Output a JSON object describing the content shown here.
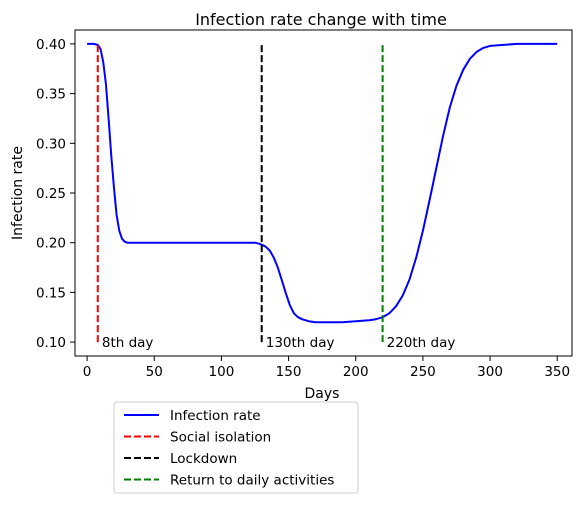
{
  "chart_data": {
    "type": "line",
    "title": "Infection rate change with time",
    "xlabel": "Days",
    "ylabel": "Infection rate",
    "xlim": [
      -9,
      361
    ],
    "ylim": [
      0.086,
      0.414
    ],
    "xticks": [
      0,
      50,
      100,
      150,
      200,
      250,
      300,
      350
    ],
    "yticks": [
      0.1,
      0.15,
      0.2,
      0.25,
      0.3,
      0.35,
      0.4
    ],
    "ytick_labels": [
      "0.10",
      "0.15",
      "0.20",
      "0.25",
      "0.30",
      "0.35",
      "0.40"
    ],
    "grid": false,
    "legend_placement": "below plot, left",
    "series": [
      {
        "name": "Infection rate",
        "kind": "line",
        "color": "#0000ff",
        "x": [
          0,
          5,
          8,
          10,
          12,
          14,
          16,
          18,
          20,
          22,
          24,
          26,
          28,
          30,
          35,
          40,
          50,
          100,
          125,
          128,
          130,
          133,
          136,
          139,
          142,
          145,
          148,
          151,
          154,
          157,
          160,
          165,
          170,
          180,
          190,
          200,
          210,
          215,
          220,
          225,
          230,
          235,
          240,
          245,
          250,
          255,
          260,
          265,
          270,
          275,
          280,
          285,
          290,
          295,
          300,
          310,
          320,
          330,
          340,
          350
        ],
        "y": [
          0.4,
          0.4,
          0.399,
          0.395,
          0.382,
          0.36,
          0.325,
          0.287,
          0.255,
          0.228,
          0.212,
          0.204,
          0.201,
          0.2,
          0.2,
          0.2,
          0.2,
          0.2,
          0.2,
          0.199,
          0.198,
          0.196,
          0.192,
          0.185,
          0.175,
          0.162,
          0.149,
          0.137,
          0.129,
          0.125,
          0.123,
          0.121,
          0.12,
          0.12,
          0.12,
          0.121,
          0.122,
          0.123,
          0.125,
          0.129,
          0.136,
          0.147,
          0.163,
          0.185,
          0.212,
          0.243,
          0.275,
          0.307,
          0.336,
          0.358,
          0.374,
          0.385,
          0.392,
          0.396,
          0.398,
          0.399,
          0.4,
          0.4,
          0.4,
          0.4
        ]
      },
      {
        "name": "Social isolation",
        "kind": "vline",
        "style": "dashed",
        "color": "#ff0000",
        "x": [
          8,
          8
        ],
        "y": [
          0.1,
          0.4
        ]
      },
      {
        "name": "Lockdown",
        "kind": "vline",
        "style": "dashed",
        "color": "#000000",
        "x": [
          130,
          130
        ],
        "y": [
          0.1,
          0.4
        ]
      },
      {
        "name": "Return to daily activities",
        "kind": "vline",
        "style": "dashed",
        "color": "#008000",
        "x": [
          220,
          220
        ],
        "y": [
          0.1,
          0.4
        ]
      }
    ],
    "annotations": [
      {
        "text": "8th day",
        "x": 11,
        "y": 0.1
      },
      {
        "text": "130th day",
        "x": 133,
        "y": 0.1
      },
      {
        "text": "220th day",
        "x": 223,
        "y": 0.1
      }
    ]
  }
}
